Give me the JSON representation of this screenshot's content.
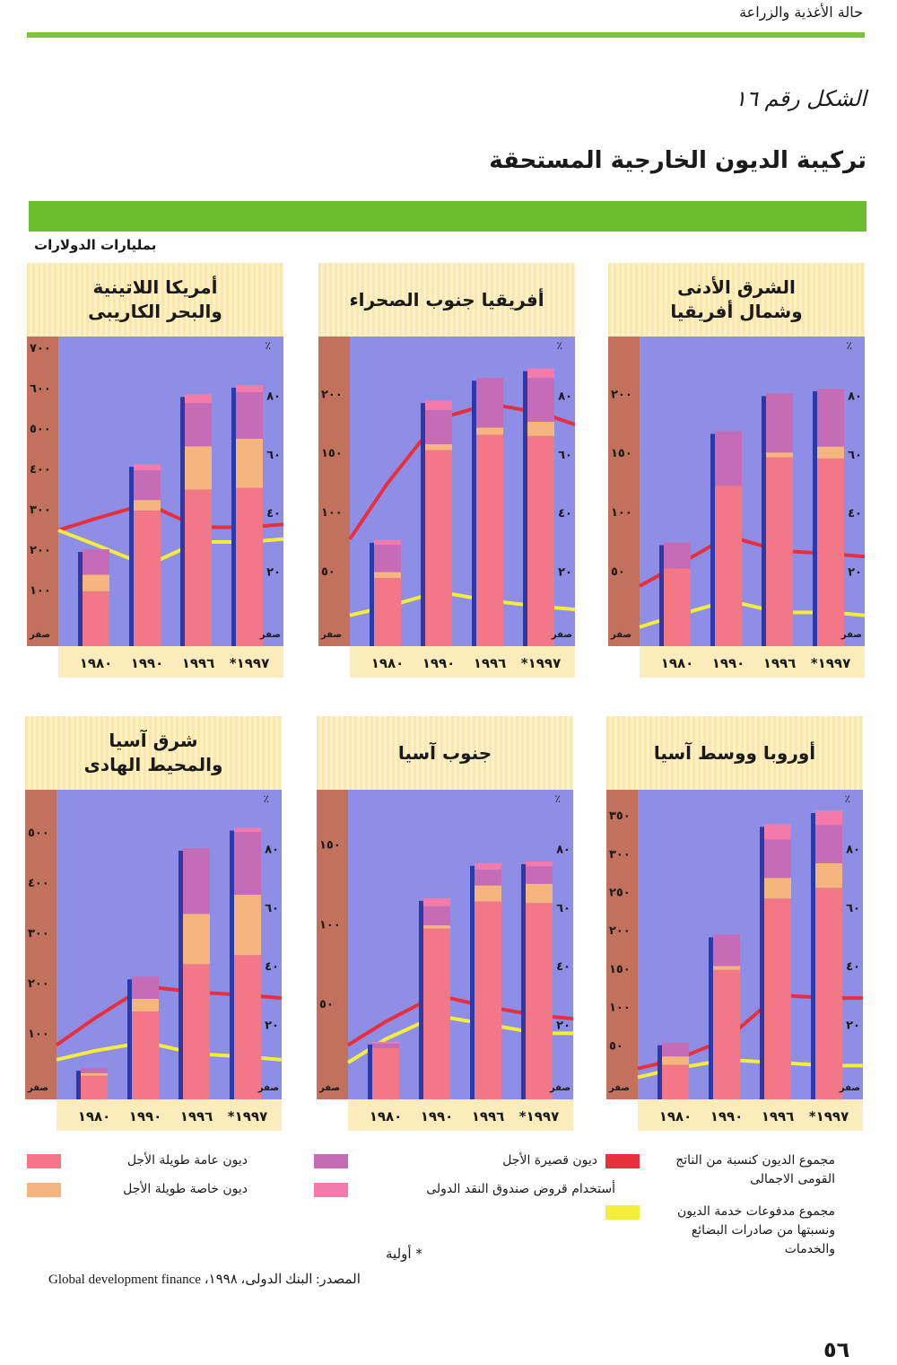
{
  "page": {
    "running_header": "حالة الأغذية والزراعة",
    "figure_label": "الشكل رقم ١٦",
    "title": "تركيبة الديون الخارجية المستحقة",
    "units": "بمليارات الدولارات",
    "footnote": "* أولية",
    "source": "المصدر: البنك الدولى، ١٩٩٨، Global development finance",
    "page_number": "٥٦"
  },
  "colors": {
    "public_lt": "#f27888",
    "private_lt": "#f5b57c",
    "short_term": "#c66cb6",
    "imf": "#f47aac",
    "debt_gnp": "#e8303c",
    "debt_service": "#f2ee3a",
    "plot_bg": "#8e8ee6",
    "axis_strip": "#c2715c",
    "bar_edge": "#2b3aa8"
  },
  "legend": [
    {
      "key": "public_lt",
      "label": "ديون عامة طويلة الأجل"
    },
    {
      "key": "private_lt",
      "label": "ديون خاصة طويلة الأجل"
    },
    {
      "key": "short_term",
      "label": "ديون قصيرة الأجل"
    },
    {
      "key": "imf",
      "label": "أستخدام قروض صندوق النقد الدولى"
    },
    {
      "key": "debt_gnp",
      "label": "مجموع الديون كنسبة من الناتج القومى الاجمالى"
    },
    {
      "key": "debt_service",
      "label": "مجموع مدفوعات خدمة الديون ونسبتها من صادرات البضائع والخدمات"
    }
  ],
  "chart_data": [
    {
      "type": "bar",
      "stacked": true,
      "title_lines": [
        "أمريكا اللاتينية",
        "والبحر الكاريبى"
      ],
      "categories": [
        "١٩٨٠",
        "١٩٩٠",
        "١٩٩٦",
        "*١٩٩٧"
      ],
      "ylabel_left": "بمليارات الدولارات",
      "ylim_left": [
        0,
        727
      ],
      "left_ticks": [
        {
          "v": 0,
          "t": "صفر"
        },
        {
          "v": 100,
          "t": "١٠٠"
        },
        {
          "v": 200,
          "t": "٢٠٠"
        },
        {
          "v": 300,
          "t": "٣٠٠"
        },
        {
          "v": 400,
          "t": "٤٠٠"
        },
        {
          "v": 500,
          "t": "٥٠٠"
        },
        {
          "v": 600,
          "t": "٦٠٠"
        },
        {
          "v": 700,
          "t": "٧٠٠"
        }
      ],
      "ylabel_right": "٪",
      "ylim_right": [
        0,
        100
      ],
      "right_ticks": [
        {
          "v": 0,
          "t": "صفر"
        },
        {
          "v": 20,
          "t": "٢٠"
        },
        {
          "v": 40,
          "t": "٤٠"
        },
        {
          "v": 60,
          "t": "٦٠"
        },
        {
          "v": 80,
          "t": "٨٠"
        }
      ],
      "series": [
        {
          "key": "public_lt",
          "values": [
            96,
            296,
            348,
            352
          ]
        },
        {
          "key": "private_lt",
          "values": [
            41,
            26,
            107,
            122
          ]
        },
        {
          "key": "short_term",
          "values": [
            63,
            74,
            107,
            115
          ]
        },
        {
          "key": "imf",
          "values": [
            0,
            15,
            22,
            18
          ]
        }
      ],
      "lines": [
        {
          "key": "debt_gnp",
          "edge_left": 34,
          "values": [
            38,
            43,
            35,
            35
          ],
          "edge_right": 36
        },
        {
          "key": "debt_service",
          "edge_left": 34,
          "values": [
            29,
            22,
            30,
            30
          ],
          "edge_right": 31
        }
      ]
    },
    {
      "type": "bar",
      "stacked": true,
      "title_lines": [
        "أفريقيا جنوب الصحراء"
      ],
      "categories": [
        "١٩٨٠",
        "١٩٩٠",
        "١٩٩٦",
        "*١٩٩٧"
      ],
      "ylabel_left": "بمليارات الدولارات",
      "ylim_left": [
        0,
        248
      ],
      "left_ticks": [
        {
          "v": 0,
          "t": "صفر"
        },
        {
          "v": 50,
          "t": "٥٠"
        },
        {
          "v": 100,
          "t": "١٠٠"
        },
        {
          "v": 150,
          "t": "١٥٠"
        },
        {
          "v": 200,
          "t": "٢٠٠"
        }
      ],
      "ylabel_right": "٪",
      "ylim_right": [
        0,
        100
      ],
      "right_ticks": [
        {
          "v": 0,
          "t": "صفر"
        },
        {
          "v": 20,
          "t": "٢٠"
        },
        {
          "v": 40,
          "t": "٤٠"
        },
        {
          "v": 60,
          "t": "٦٠"
        },
        {
          "v": 80,
          "t": "٨٠"
        }
      ],
      "series": [
        {
          "key": "public_lt",
          "values": [
            44,
            152,
            165,
            164
          ]
        },
        {
          "key": "private_lt",
          "values": [
            5,
            5,
            6,
            12
          ]
        },
        {
          "key": "short_term",
          "values": [
            23,
            29,
            42,
            37
          ]
        },
        {
          "key": "imf",
          "values": [
            4,
            8,
            0,
            8
          ]
        }
      ],
      "lines": [
        {
          "key": "debt_gnp",
          "edge_left": 31,
          "values": [
            50,
            72,
            77,
            74
          ],
          "edge_right": 70
        },
        {
          "key": "debt_service",
          "edge_left": 5,
          "values": [
            8,
            13,
            10,
            8
          ],
          "edge_right": 7
        }
      ]
    },
    {
      "type": "bar",
      "stacked": true,
      "title_lines": [
        "الشرق الأدنى",
        "وشمال أفريقيا"
      ],
      "categories": [
        "١٩٨٠",
        "١٩٩٠",
        "١٩٩٦",
        "*١٩٩٧"
      ],
      "ylabel_left": "بمليارات الدولارات",
      "ylim_left": [
        0,
        248
      ],
      "left_ticks": [
        {
          "v": 0,
          "t": "صفر"
        },
        {
          "v": 50,
          "t": "٥٠"
        },
        {
          "v": 100,
          "t": "١٠٠"
        },
        {
          "v": 150,
          "t": "١٥٠"
        },
        {
          "v": 200,
          "t": "٢٠٠"
        }
      ],
      "ylabel_right": "٪",
      "ylim_right": [
        0,
        100
      ],
      "right_ticks": [
        {
          "v": 0,
          "t": "صفر"
        },
        {
          "v": 20,
          "t": "٢٠"
        },
        {
          "v": 40,
          "t": "٤٠"
        },
        {
          "v": 60,
          "t": "٦٠"
        },
        {
          "v": 80,
          "t": "٨٠"
        }
      ],
      "series": [
        {
          "key": "public_lt",
          "values": [
            52,
            122,
            146,
            145
          ]
        },
        {
          "key": "private_lt",
          "values": [
            0,
            0,
            4,
            10
          ]
        },
        {
          "key": "short_term",
          "values": [
            22,
            46,
            50,
            49
          ]
        },
        {
          "key": "imf",
          "values": [
            0,
            0,
            0,
            0
          ]
        }
      ],
      "lines": [
        {
          "key": "debt_gnp",
          "edge_left": 15,
          "values": [
            22,
            32,
            27,
            26
          ],
          "edge_right": 25
        },
        {
          "key": "debt_service",
          "edge_left": 1,
          "values": [
            5,
            10,
            6,
            6
          ],
          "edge_right": 5
        }
      ]
    },
    {
      "type": "bar",
      "stacked": true,
      "title_lines": [
        "شرق آسيا",
        "والمحيط الهادى"
      ],
      "categories": [
        "١٩٨٠",
        "١٩٩٠",
        "١٩٩٦",
        "*١٩٩٧"
      ],
      "ylabel_left": "بمليارات الدولارات",
      "ylim_left": [
        0,
        584
      ],
      "left_ticks": [
        {
          "v": 0,
          "t": "صفر"
        },
        {
          "v": 100,
          "t": "١٠٠"
        },
        {
          "v": 200,
          "t": "٢٠٠"
        },
        {
          "v": 300,
          "t": "٣٠٠"
        },
        {
          "v": 400,
          "t": "٤٠٠"
        },
        {
          "v": 500,
          "t": "٥٠٠"
        }
      ],
      "ylabel_right": "٪",
      "ylim_right": [
        0,
        100
      ],
      "right_ticks": [
        {
          "v": 0,
          "t": "صفر"
        },
        {
          "v": 20,
          "t": "٢٠"
        },
        {
          "v": 40,
          "t": "٤٠"
        },
        {
          "v": 60,
          "t": "٦٠"
        },
        {
          "v": 80,
          "t": "٨٠"
        }
      ],
      "series": [
        {
          "key": "public_lt",
          "values": [
            15,
            143,
            237,
            255
          ]
        },
        {
          "key": "private_lt",
          "values": [
            5,
            25,
            100,
            120
          ]
        },
        {
          "key": "short_term",
          "values": [
            10,
            44,
            131,
            125
          ]
        },
        {
          "key": "imf",
          "values": [
            0,
            0,
            0,
            8
          ]
        }
      ],
      "lines": [
        {
          "key": "debt_gnp",
          "edge_left": 13,
          "values": [
            22,
            33,
            31,
            30
          ],
          "edge_right": 29
        },
        {
          "key": "debt_service",
          "edge_left": 8,
          "values": [
            11,
            14,
            10,
            9
          ],
          "edge_right": 8
        }
      ]
    },
    {
      "type": "bar",
      "stacked": true,
      "title_lines": [
        "جنوب آسيا"
      ],
      "categories": [
        "١٩٨٠",
        "١٩٩٠",
        "١٩٩٦",
        "*١٩٩٧"
      ],
      "ylabel_left": "بمليارات الدولارات",
      "ylim_left": [
        0,
        184
      ],
      "left_ticks": [
        {
          "v": 0,
          "t": "صفر"
        },
        {
          "v": 50,
          "t": "٥٠"
        },
        {
          "v": 100,
          "t": "١٠٠"
        },
        {
          "v": 150,
          "t": "١٥٠"
        }
      ],
      "ylabel_right": "٪",
      "ylim_right": [
        0,
        100
      ],
      "right_ticks": [
        {
          "v": 0,
          "t": "صفر"
        },
        {
          "v": 20,
          "t": "٢٠"
        },
        {
          "v": 40,
          "t": "٤٠"
        },
        {
          "v": 60,
          "t": "٦٠"
        },
        {
          "v": 80,
          "t": "٨٠"
        }
      ],
      "series": [
        {
          "key": "public_lt",
          "values": [
            22,
            97,
            114,
            113
          ]
        },
        {
          "key": "private_lt",
          "values": [
            0,
            2,
            10,
            12
          ]
        },
        {
          "key": "short_term",
          "values": [
            3,
            12,
            10,
            11
          ]
        },
        {
          "key": "imf",
          "values": [
            1,
            5,
            4,
            3
          ]
        }
      ],
      "lines": [
        {
          "key": "debt_gnp",
          "edge_left": 13,
          "values": [
            21,
            30,
            26,
            23
          ],
          "edge_right": 22
        },
        {
          "key": "debt_service",
          "edge_left": 7,
          "values": [
            15,
            23,
            20,
            17
          ],
          "edge_right": 17
        }
      ]
    },
    {
      "type": "bar",
      "stacked": true,
      "title_lines": [
        "أوروبا ووسط آسيا"
      ],
      "categories": [
        "١٩٨٠",
        "١٩٩٠",
        "١٩٩٦",
        "*١٩٩٧"
      ],
      "ylabel_left": "بمليارات الدولارات",
      "ylim_left": [
        0,
        383
      ],
      "left_ticks": [
        {
          "v": 0,
          "t": "صفر"
        },
        {
          "v": 50,
          "t": "٥٠"
        },
        {
          "v": 100,
          "t": "١٠٠"
        },
        {
          "v": 150,
          "t": "١٥٠"
        },
        {
          "v": 200,
          "t": "٢٠٠"
        },
        {
          "v": 250,
          "t": "٢٥٠"
        },
        {
          "v": 300,
          "t": "٣٠٠"
        },
        {
          "v": 350,
          "t": "٣٥٠"
        }
      ],
      "ylabel_right": "٪",
      "ylim_right": [
        0,
        100
      ],
      "right_ticks": [
        {
          "v": 0,
          "t": "صفر"
        },
        {
          "v": 20,
          "t": "٢٠"
        },
        {
          "v": 40,
          "t": "٤٠"
        },
        {
          "v": 60,
          "t": "٦٠"
        },
        {
          "v": 80,
          "t": "٨٠"
        }
      ],
      "series": [
        {
          "key": "public_lt",
          "values": [
            24,
            148,
            241,
            255
          ]
        },
        {
          "key": "private_lt",
          "values": [
            11,
            5,
            27,
            32
          ]
        },
        {
          "key": "short_term",
          "values": [
            18,
            41,
            50,
            50
          ]
        },
        {
          "key": "imf",
          "values": [
            0,
            0,
            20,
            19
          ]
        }
      ],
      "lines": [
        {
          "key": "debt_gnp",
          "edge_left": 5,
          "values": [
            8,
            15,
            30,
            29
          ],
          "edge_right": 29
        },
        {
          "key": "debt_service",
          "edge_left": 2,
          "values": [
            5,
            8,
            7,
            6
          ],
          "edge_right": 6
        }
      ]
    }
  ]
}
